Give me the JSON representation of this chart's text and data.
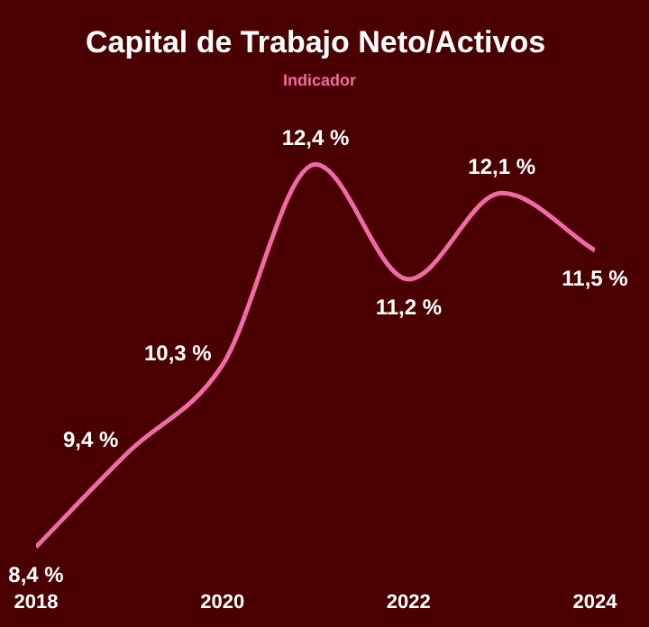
{
  "chart_data": {
    "type": "line",
    "title": "Capital de Trabajo Neto/Activos",
    "x": [
      2018,
      2019,
      2020,
      2021,
      2022,
      2023,
      2024
    ],
    "series": [
      {
        "name": "Indicador",
        "color": "#f06aa8",
        "values": [
          8.4,
          9.4,
          10.3,
          12.4,
          11.2,
          12.1,
          11.5
        ],
        "value_labels": [
          "8,4 %",
          "9,4 %",
          "10,3 %",
          "12,4 %",
          "11,2 %",
          "12,1 %",
          "11,5 %"
        ]
      }
    ],
    "xlim": [
      2018,
      2024
    ],
    "xticks": [
      2018,
      2020,
      2022,
      2024
    ],
    "grid": false,
    "legend": "top",
    "marker": "none",
    "line_style": "solid"
  }
}
